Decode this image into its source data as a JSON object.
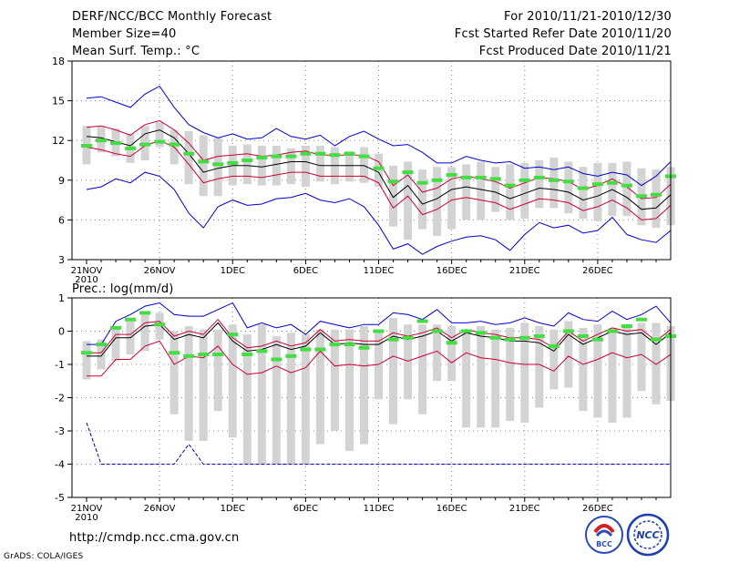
{
  "header": {
    "title": "DERF/NCC/BCC Monthly Forecast",
    "member_size": "Member Size=40",
    "variable": "Mean Surf. Temp.: °C",
    "period": "For 2010/11/21-2010/12/30",
    "started": "Fcst Started Refer Date 2010/11/20",
    "produced": "Fcst Produced Date 2010/11/21"
  },
  "footer": {
    "url": "http://cmdp.ncc.cma.gov.cn",
    "grads": "GrADS: COLA/IGES",
    "logo_left_text": "BCC",
    "logo_right_text": "NCC"
  },
  "colors": {
    "mean": "#000000",
    "spread": "#cc0033",
    "extreme": "#0000cc",
    "box": "#d3d3d3",
    "median": "#44dd44",
    "grid": "#888888"
  },
  "chart_data": [
    {
      "type": "line",
      "name": "temperature",
      "title": "Mean Surf. Temp.: °C",
      "x_labels": [
        "21NOV",
        "26NOV",
        "1DEC",
        "6DEC",
        "11DEC",
        "16DEC",
        "21DEC",
        "26DEC"
      ],
      "x_year_label": "2010",
      "days": 40,
      "ylim": [
        3,
        18
      ],
      "yticks": [
        3,
        6,
        9,
        12,
        15,
        18
      ],
      "series": [
        {
          "name": "mean",
          "values": [
            12.3,
            12.2,
            11.9,
            11.6,
            12.5,
            12.8,
            12.2,
            11.0,
            9.6,
            9.9,
            10.1,
            10.1,
            10.0,
            10.2,
            10.4,
            10.4,
            10.1,
            10.1,
            10.1,
            10.1,
            9.6,
            7.7,
            8.6,
            7.2,
            7.6,
            8.3,
            8.5,
            8.3,
            8.1,
            7.6,
            8.0,
            8.4,
            8.3,
            8.1,
            7.5,
            7.8,
            8.3,
            7.7,
            6.8,
            6.9,
            7.9
          ]
        },
        {
          "name": "upper",
          "values": [
            13.0,
            13.1,
            12.8,
            12.4,
            13.2,
            13.5,
            12.8,
            11.8,
            10.5,
            10.8,
            10.9,
            11.0,
            10.8,
            10.9,
            11.1,
            11.2,
            10.9,
            10.9,
            10.9,
            10.9,
            10.4,
            8.6,
            9.4,
            8.1,
            8.4,
            9.1,
            9.3,
            9.1,
            8.9,
            8.4,
            8.8,
            9.2,
            9.1,
            8.9,
            8.3,
            8.6,
            9.1,
            8.5,
            7.6,
            7.7,
            8.7
          ]
        },
        {
          "name": "lower",
          "values": [
            11.5,
            11.3,
            11.0,
            10.8,
            11.6,
            12.0,
            11.5,
            10.2,
            8.8,
            9.1,
            9.3,
            9.3,
            9.2,
            9.4,
            9.6,
            9.6,
            9.3,
            9.3,
            9.3,
            9.3,
            8.8,
            6.9,
            7.8,
            6.4,
            6.8,
            7.5,
            7.7,
            7.5,
            7.3,
            6.8,
            7.2,
            7.6,
            7.5,
            7.3,
            6.7,
            7.0,
            7.5,
            6.9,
            6.0,
            6.1,
            7.1
          ]
        },
        {
          "name": "max",
          "values": [
            15.2,
            15.3,
            14.9,
            14.5,
            15.5,
            16.1,
            14.5,
            13.2,
            12.6,
            12.2,
            12.5,
            12.1,
            12.2,
            12.9,
            12.3,
            12.1,
            12.4,
            11.6,
            12.3,
            12.7,
            12.1,
            11.6,
            11.7,
            11.1,
            10.3,
            10.3,
            10.8,
            10.5,
            10.3,
            10.4,
            9.9,
            10.0,
            9.8,
            10.0,
            9.5,
            9.3,
            9.6,
            9.4,
            8.6,
            9.3,
            10.4
          ]
        },
        {
          "name": "min",
          "values": [
            8.3,
            8.5,
            9.1,
            8.8,
            9.6,
            9.3,
            8.3,
            6.5,
            5.4,
            7.0,
            7.5,
            7.1,
            7.2,
            7.6,
            7.7,
            8.0,
            7.5,
            7.3,
            7.6,
            7.0,
            5.6,
            3.8,
            4.2,
            3.4,
            4.0,
            4.4,
            4.7,
            4.8,
            4.5,
            3.7,
            4.9,
            5.8,
            5.4,
            5.6,
            5.0,
            5.2,
            6.2,
            4.9,
            4.5,
            4.3,
            5.2
          ]
        }
      ],
      "boxes": {
        "high": [
          13.1,
          13.1,
          12.9,
          12.5,
          13.1,
          13.4,
          12.8,
          12.7,
          12.4,
          12.2,
          11.6,
          11.7,
          11.6,
          11.6,
          11.4,
          11.6,
          11.6,
          11.5,
          11.2,
          11.5,
          11.0,
          10.1,
          10.4,
          9.8,
          10.0,
          10.0,
          10.2,
          10.4,
          10.0,
          10.2,
          10.3,
          10.5,
          10.7,
          10.4,
          10.0,
          10.3,
          10.3,
          10.4,
          9.9,
          9.8,
          10.0
        ],
        "low": [
          10.2,
          11.1,
          10.8,
          10.3,
          10.5,
          11.5,
          10.2,
          8.7,
          7.8,
          7.8,
          8.6,
          8.7,
          8.6,
          8.6,
          8.7,
          8.5,
          8.9,
          8.7,
          8.9,
          8.8,
          8.5,
          5.5,
          4.5,
          5.3,
          4.8,
          5.3,
          6.0,
          6.0,
          6.6,
          6.0,
          6.1,
          6.9,
          6.9,
          6.5,
          6.1,
          5.9,
          6.3,
          6.3,
          5.6,
          5.4,
          5.6
        ],
        "median": [
          11.6,
          12.0,
          11.8,
          11.4,
          11.7,
          11.9,
          11.7,
          11.0,
          10.4,
          10.2,
          10.3,
          10.5,
          10.7,
          10.8,
          10.8,
          11.0,
          11.0,
          10.9,
          11.0,
          10.8,
          9.9,
          8.9,
          9.6,
          8.8,
          9.0,
          9.4,
          9.2,
          9.2,
          9.1,
          8.6,
          9.0,
          9.2,
          9.0,
          8.9,
          8.4,
          8.7,
          8.8,
          8.6,
          7.8,
          7.9,
          9.3
        ]
      }
    },
    {
      "type": "line",
      "name": "precipitation",
      "title": "Prec.: log(mm/d)",
      "x_labels": [
        "21NOV",
        "26NOV",
        "1DEC",
        "6DEC",
        "11DEC",
        "16DEC",
        "21DEC",
        "26DEC"
      ],
      "x_year_label": "2010",
      "days": 40,
      "ylim": [
        -5,
        1
      ],
      "yticks": [
        -5,
        -4,
        -3,
        -2,
        -1,
        0,
        1
      ],
      "series": [
        {
          "name": "mean",
          "values": [
            -0.75,
            -0.75,
            -0.2,
            -0.2,
            0.15,
            0.2,
            -0.25,
            -0.1,
            -0.2,
            0.25,
            -0.3,
            -0.6,
            -0.55,
            -0.4,
            -0.55,
            -0.45,
            -0.05,
            -0.4,
            -0.35,
            -0.4,
            -0.4,
            -0.15,
            -0.25,
            -0.15,
            0.0,
            -0.3,
            -0.05,
            -0.15,
            -0.2,
            -0.3,
            -0.3,
            -0.35,
            -0.6,
            -0.1,
            -0.4,
            -0.2,
            0.0,
            -0.1,
            -0.05,
            -0.4,
            -0.05
          ]
        },
        {
          "name": "upper",
          "values": [
            -0.65,
            -0.65,
            -0.1,
            -0.1,
            0.25,
            0.3,
            -0.15,
            0.0,
            -0.1,
            0.35,
            -0.2,
            -0.5,
            -0.45,
            -0.3,
            -0.45,
            -0.35,
            0.05,
            -0.3,
            -0.25,
            -0.3,
            -0.3,
            -0.05,
            -0.15,
            -0.05,
            0.1,
            -0.2,
            0.05,
            -0.05,
            -0.1,
            -0.2,
            -0.2,
            -0.25,
            -0.5,
            0.0,
            -0.3,
            -0.1,
            0.1,
            0.0,
            0.05,
            -0.3,
            0.05
          ]
        },
        {
          "name": "lower",
          "values": [
            -1.35,
            -1.35,
            -0.85,
            -0.85,
            -0.45,
            -0.3,
            -1.0,
            -0.75,
            -0.8,
            -0.45,
            -1.0,
            -1.3,
            -1.25,
            -1.05,
            -1.25,
            -1.1,
            -0.6,
            -1.05,
            -1.0,
            -1.05,
            -1.0,
            -0.75,
            -0.9,
            -0.75,
            -0.6,
            -0.95,
            -0.65,
            -0.8,
            -0.85,
            -0.95,
            -1.0,
            -1.0,
            -1.2,
            -0.75,
            -1.0,
            -0.85,
            -0.65,
            -0.8,
            -0.7,
            -1.0,
            -0.7
          ]
        },
        {
          "name": "max",
          "values": [
            -0.4,
            -0.4,
            0.3,
            0.5,
            0.75,
            0.85,
            0.5,
            0.45,
            0.45,
            0.65,
            0.85,
            0.1,
            0.25,
            0.1,
            0.2,
            -0.1,
            0.3,
            0.2,
            0.1,
            0.2,
            0.2,
            0.55,
            0.5,
            0.35,
            0.65,
            0.25,
            0.25,
            0.3,
            0.2,
            0.25,
            0.4,
            0.25,
            0.15,
            0.55,
            0.35,
            0.3,
            0.6,
            0.35,
            0.5,
            0.75,
            0.25
          ]
        },
        {
          "name": "min",
          "values": [
            -2.75,
            -4.0,
            -4.0,
            -4.0,
            -4.0,
            -4.0,
            -4.0,
            -3.4,
            -4.0,
            -4.0,
            -4.0,
            -4.0,
            -4.0,
            -4.0,
            -4.0,
            -4.0,
            -4.0,
            -4.0,
            -4.0,
            -4.0,
            -4.0,
            -4.0,
            -4.0,
            -4.0,
            -4.0,
            -4.0,
            -4.0,
            -4.0,
            -4.0,
            -4.0,
            -4.0,
            -4.0,
            -4.0,
            -4.0,
            -4.0,
            -4.0,
            -4.0,
            -4.0,
            -4.0,
            -4.0,
            -4.0
          ]
        }
      ],
      "boxes": {
        "high": [
          -0.3,
          -0.25,
          0.1,
          0.3,
          0.5,
          0.55,
          0.0,
          0.15,
          0.05,
          0.05,
          0.2,
          -0.1,
          0.2,
          -0.15,
          -0.05,
          -0.1,
          0.05,
          0.05,
          0.05,
          0.15,
          0.0,
          0.4,
          0.2,
          0.2,
          0.2,
          0.15,
          0.05,
          0.15,
          0.05,
          0.1,
          0.25,
          0.15,
          0.05,
          0.3,
          0.1,
          0.2,
          0.1,
          0.15,
          0.25,
          0.25,
          0.15
        ],
        "low": [
          -1.45,
          -1.15,
          -0.9,
          -0.7,
          -0.6,
          -0.25,
          -2.5,
          -3.3,
          -3.3,
          -2.4,
          -3.2,
          -4.0,
          -4.0,
          -4.0,
          -4.0,
          -4.0,
          -3.4,
          -3.0,
          -3.6,
          -3.4,
          -2.05,
          -2.8,
          -2.05,
          -2.5,
          -1.5,
          -1.5,
          -2.9,
          -2.9,
          -2.9,
          -2.7,
          -2.75,
          -2.3,
          -1.75,
          -1.7,
          -2.4,
          -2.6,
          -2.75,
          -2.6,
          -1.8,
          -2.2,
          -2.1
        ],
        "median": [
          -0.65,
          -0.4,
          0.1,
          0.35,
          0.55,
          0.2,
          -0.65,
          -0.75,
          -0.7,
          -0.7,
          -0.1,
          -0.7,
          -0.6,
          -0.85,
          -0.75,
          -0.55,
          -0.55,
          -0.4,
          -0.4,
          -0.5,
          0.0,
          -0.25,
          -0.2,
          0.3,
          0.0,
          -0.35,
          0.0,
          -0.05,
          -0.2,
          -0.25,
          -0.2,
          -0.15,
          -0.45,
          0.0,
          -0.15,
          -0.25,
          0.0,
          0.15,
          0.35,
          -0.25,
          -0.15
        ]
      }
    }
  ]
}
